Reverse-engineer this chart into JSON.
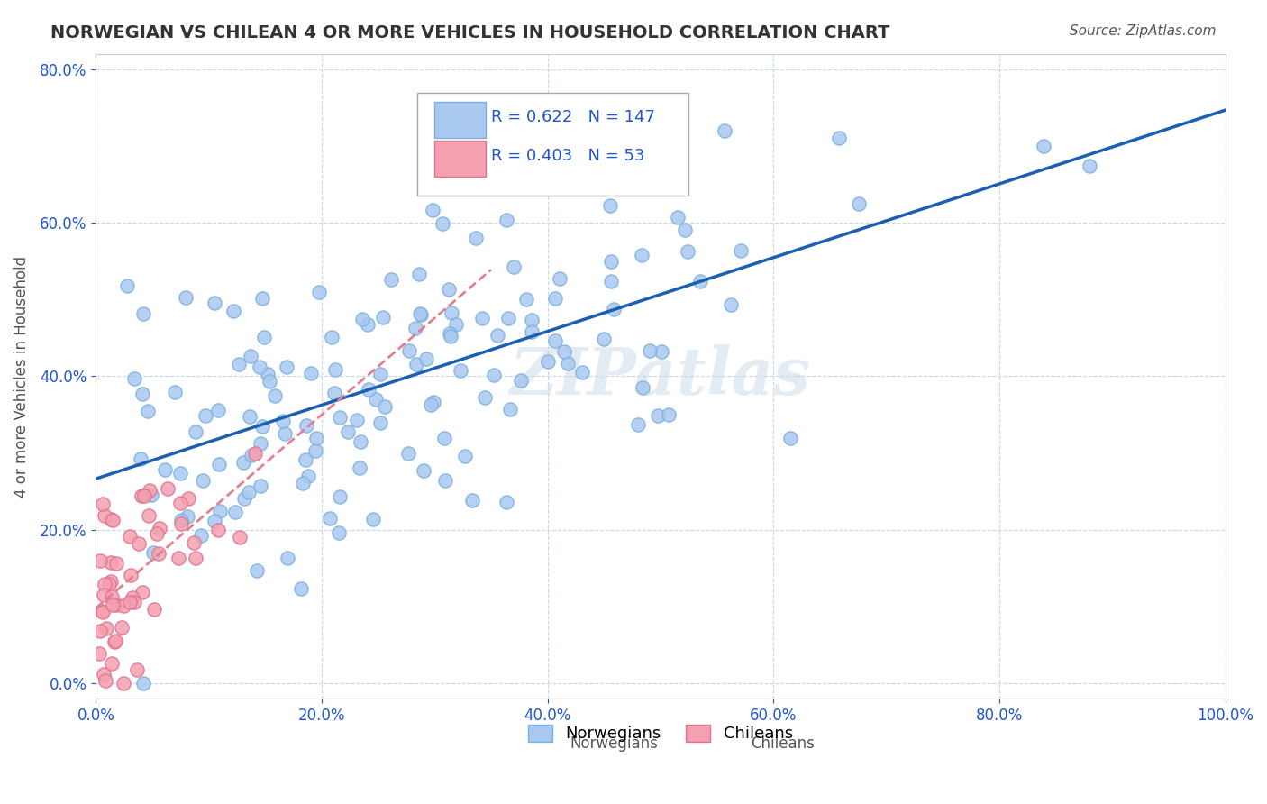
{
  "title": "NORWEGIAN VS CHILEAN 4 OR MORE VEHICLES IN HOUSEHOLD CORRELATION CHART",
  "source_text": "Source: ZipAtlas.com",
  "ylabel": "4 or more Vehicles in Household",
  "xlabel": "",
  "watermark": "ZIPatlas",
  "xlim": [
    0.0,
    1.0
  ],
  "ylim": [
    -0.02,
    0.82
  ],
  "xticks": [
    0.0,
    0.2,
    0.4,
    0.6,
    0.8,
    1.0
  ],
  "xtick_labels": [
    "0.0%",
    "20.0%",
    "40.0%",
    "60.0%",
    "80.0%",
    "100.0%"
  ],
  "yticks": [
    0.0,
    0.2,
    0.4,
    0.6,
    0.8
  ],
  "ytick_labels": [
    "0.0%",
    "20.0%",
    "40.0%",
    "60.0%",
    "80.0%"
  ],
  "norwegian_color": "#a8c8f0",
  "norwegian_edge_color": "#7ab0e0",
  "chilean_color": "#f4a0b0",
  "chilean_edge_color": "#e07090",
  "norwegian_line_color": "#1a5fb4",
  "chilean_line_color": "#e08090",
  "R_norwegian": 0.622,
  "N_norwegian": 147,
  "R_chilean": 0.403,
  "N_chilean": 53,
  "legend_r_color": "#2255cc",
  "legend_n_color": "#2255cc",
  "background_color": "#ffffff",
  "grid_color": "#c8d8e8",
  "title_color": "#333333",
  "axis_label_color": "#555555",
  "tick_color": "#2255cc",
  "source_color": "#555555",
  "norwegian_seed": 42,
  "chilean_seed": 99,
  "marker_size": 120
}
